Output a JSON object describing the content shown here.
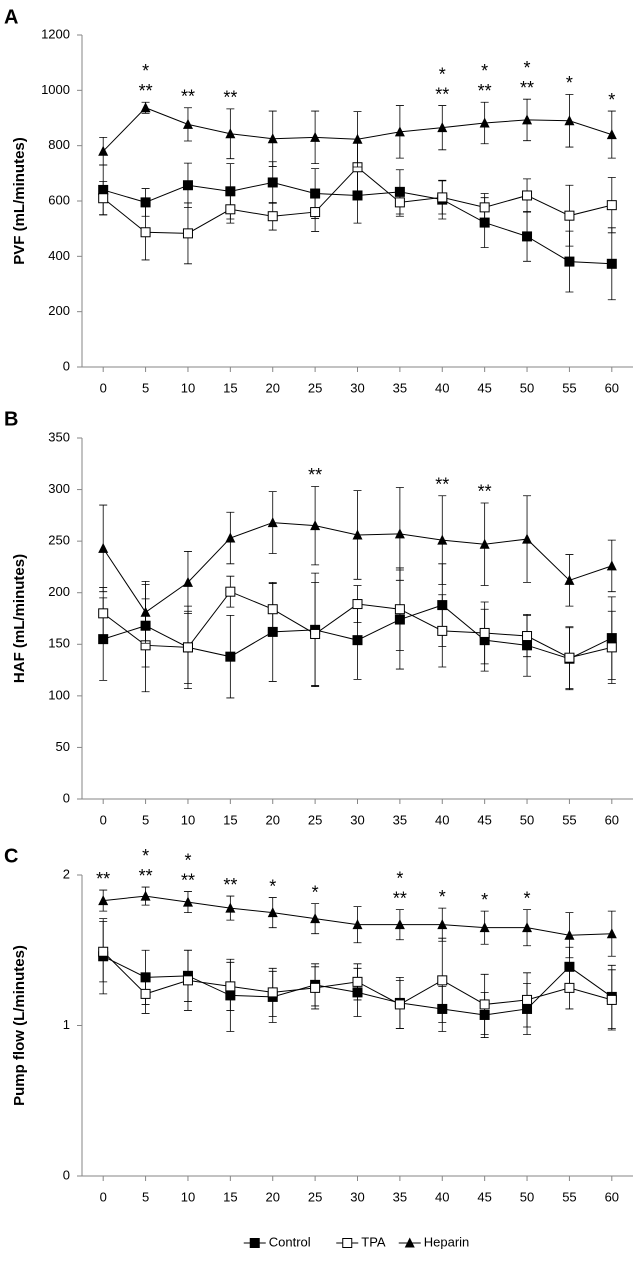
{
  "chart_data": [
    {
      "type": "line",
      "panel": "A",
      "ylabel": "PVF (mL/minutes)",
      "x": [
        0,
        5,
        10,
        15,
        20,
        25,
        30,
        35,
        40,
        45,
        50,
        55,
        60
      ],
      "xlim": [
        -2.5,
        62.5
      ],
      "xticks": [
        0,
        5,
        10,
        15,
        20,
        25,
        30,
        35,
        40,
        45,
        50,
        55,
        60
      ],
      "ylim": [
        0,
        1200
      ],
      "yticks": [
        0,
        200,
        400,
        600,
        800,
        1000,
        1200
      ],
      "legend": "bottom",
      "series": [
        {
          "name": "Control",
          "color": "#000000",
          "marker": "square-filled",
          "values": [
            640,
            595,
            657,
            635,
            667,
            627,
            620,
            633,
            605,
            522,
            472,
            381,
            373
          ],
          "errors": [
            90,
            50,
            80,
            100,
            75,
            90,
            100,
            80,
            70,
            90,
            90,
            110,
            130
          ]
        },
        {
          "name": "TPA",
          "color": "#000000",
          "marker": "square-open",
          "values": [
            610,
            487,
            483,
            570,
            545,
            560,
            722,
            595,
            613,
            577,
            620,
            547,
            585
          ],
          "errors": [
            60,
            100,
            110,
            50,
            50,
            70,
            90,
            50,
            60,
            50,
            60,
            110,
            100
          ]
        },
        {
          "name": "Heparin",
          "color": "#000000",
          "marker": "triangle-filled",
          "values": [
            780,
            937,
            877,
            843,
            825,
            830,
            823,
            850,
            865,
            882,
            893,
            890,
            840
          ],
          "errors": [
            50,
            20,
            60,
            90,
            100,
            95,
            100,
            95,
            80,
            75,
            75,
            95,
            85
          ]
        }
      ],
      "annotations": [
        {
          "x": 5,
          "text": [
            "*",
            "**"
          ]
        },
        {
          "x": 10,
          "text": [
            "**"
          ]
        },
        {
          "x": 15,
          "text": [
            "**"
          ]
        },
        {
          "x": 40,
          "text": [
            "*",
            "**"
          ]
        },
        {
          "x": 45,
          "text": [
            "*",
            "**"
          ]
        },
        {
          "x": 50,
          "text": [
            "*",
            "**"
          ]
        },
        {
          "x": 55,
          "text": [
            "*"
          ]
        },
        {
          "x": 60,
          "text": [
            "*"
          ]
        }
      ]
    },
    {
      "type": "line",
      "panel": "B",
      "ylabel": "HAF (mL/minutes)",
      "x": [
        0,
        5,
        10,
        15,
        20,
        25,
        30,
        35,
        40,
        45,
        50,
        55,
        60
      ],
      "xlim": [
        -2.5,
        62.5
      ],
      "xticks": [
        0,
        5,
        10,
        15,
        20,
        25,
        30,
        35,
        40,
        45,
        50,
        55,
        60
      ],
      "ylim": [
        0,
        350
      ],
      "yticks": [
        0,
        50,
        100,
        150,
        200,
        250,
        300,
        350
      ],
      "series": [
        {
          "name": "Control",
          "color": "#000000",
          "marker": "square-filled",
          "values": [
            155,
            168,
            147,
            138,
            162,
            164,
            154,
            174,
            188,
            154,
            149,
            136,
            156
          ],
          "errors": [
            40,
            40,
            40,
            40,
            48,
            55,
            38,
            48,
            40,
            30,
            30,
            30,
            40
          ]
        },
        {
          "name": "TPA",
          "color": "#000000",
          "marker": "square-open",
          "values": [
            180,
            149,
            147,
            201,
            184,
            160,
            189,
            184,
            163,
            161,
            158,
            137,
            147
          ],
          "errors": [
            25,
            45,
            35,
            15,
            25,
            50,
            18,
            40,
            35,
            30,
            20,
            30,
            35
          ]
        },
        {
          "name": "Heparin",
          "color": "#000000",
          "marker": "triangle-filled",
          "values": [
            243,
            181,
            210,
            253,
            268,
            265,
            256,
            257,
            251,
            247,
            252,
            212,
            226
          ],
          "errors": [
            42,
            30,
            30,
            25,
            30,
            38,
            43,
            45,
            43,
            40,
            42,
            25,
            25
          ]
        }
      ],
      "annotations": [
        {
          "x": 25,
          "text": [
            "**"
          ]
        },
        {
          "x": 40,
          "text": [
            "**"
          ]
        },
        {
          "x": 45,
          "text": [
            "**"
          ]
        }
      ]
    },
    {
      "type": "line",
      "panel": "C",
      "ylabel": "Pump flow (L/minutes)",
      "x": [
        0,
        5,
        10,
        15,
        20,
        25,
        30,
        35,
        40,
        45,
        50,
        55,
        60
      ],
      "xlim": [
        -2.5,
        62.5
      ],
      "xticks": [
        0,
        5,
        10,
        15,
        20,
        25,
        30,
        35,
        40,
        45,
        50,
        55,
        60
      ],
      "ylim": [
        0,
        2
      ],
      "yticks": [
        0,
        1,
        2
      ],
      "series": [
        {
          "name": "Control",
          "color": "#000000",
          "marker": "square-filled",
          "values": [
            1.46,
            1.32,
            1.33,
            1.2,
            1.19,
            1.27,
            1.22,
            1.15,
            1.11,
            1.07,
            1.11,
            1.39,
            1.19
          ],
          "errors": [
            0.25,
            0.18,
            0.17,
            0.24,
            0.17,
            0.14,
            0.16,
            0.17,
            0.15,
            0.15,
            0.17,
            0.13,
            0.21
          ]
        },
        {
          "name": "TPA",
          "color": "#000000",
          "marker": "square-open",
          "values": [
            1.49,
            1.21,
            1.3,
            1.26,
            1.22,
            1.25,
            1.29,
            1.14,
            1.3,
            1.14,
            1.17,
            1.25,
            1.17
          ],
          "errors": [
            0.2,
            0.13,
            0.2,
            0.16,
            0.16,
            0.14,
            0.12,
            0.16,
            0.28,
            0.2,
            0.18,
            0.14,
            0.2
          ]
        },
        {
          "name": "Heparin",
          "color": "#000000",
          "marker": "triangle-filled",
          "values": [
            1.83,
            1.86,
            1.82,
            1.78,
            1.75,
            1.71,
            1.67,
            1.67,
            1.67,
            1.65,
            1.65,
            1.6,
            1.61
          ],
          "errors": [
            0.07,
            0.06,
            0.07,
            0.08,
            0.1,
            0.1,
            0.12,
            0.1,
            0.11,
            0.11,
            0.12,
            0.15,
            0.15
          ]
        }
      ],
      "annotations": [
        {
          "x": 0,
          "text": [
            "**"
          ]
        },
        {
          "x": 5,
          "text": [
            "*",
            "**"
          ]
        },
        {
          "x": 10,
          "text": [
            "*",
            "**"
          ]
        },
        {
          "x": 15,
          "text": [
            "**"
          ]
        },
        {
          "x": 20,
          "text": [
            "*"
          ]
        },
        {
          "x": 25,
          "text": [
            "*"
          ]
        },
        {
          "x": 35,
          "text": [
            "*",
            "**"
          ]
        },
        {
          "x": 40,
          "text": [
            "*"
          ]
        },
        {
          "x": 45,
          "text": [
            "*"
          ]
        },
        {
          "x": 50,
          "text": [
            "*"
          ]
        }
      ]
    }
  ]
}
